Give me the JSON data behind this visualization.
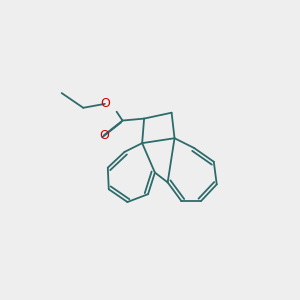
{
  "bg_color": "#eeeeee",
  "bond_color": "#2d6b6b",
  "o_color": "#cc0000",
  "lw": 1.3,
  "figsize": [
    3.0,
    3.0
  ],
  "dpi": 100
}
